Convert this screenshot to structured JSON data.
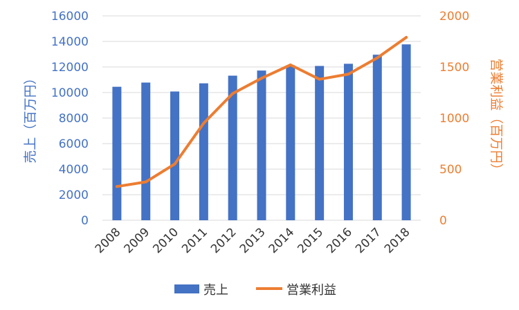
{
  "chart_data": {
    "type": "bar",
    "x": [
      "2008",
      "2009",
      "2010",
      "2011",
      "2012",
      "2013",
      "2014",
      "2015",
      "2016",
      "2017",
      "2018"
    ],
    "series": [
      {
        "name": "売上",
        "type": "bar",
        "axis": "left",
        "color": "#4472C4",
        "values": [
          10450,
          10780,
          10080,
          10720,
          11320,
          11720,
          12130,
          12080,
          12250,
          12960,
          13770
        ]
      },
      {
        "name": "営業利益",
        "type": "line",
        "axis": "right",
        "color": "#ED7D31",
        "values": [
          330,
          375,
          550,
          950,
          1240,
          1390,
          1520,
          1380,
          1430,
          1590,
          1790
        ]
      }
    ],
    "ylabel_left": "売上（百万円）",
    "ylabel_right": "営業利益（百万円）",
    "ylim_left": [
      0,
      16000
    ],
    "ylim_right": [
      0,
      2000
    ],
    "yticks_left": [
      "0",
      "2000",
      "4000",
      "6000",
      "8000",
      "10000",
      "12000",
      "14000",
      "16000"
    ],
    "yticks_right": [
      "0",
      "500",
      "1000",
      "1500",
      "2000"
    ],
    "grid": true,
    "legend_position": "bottom"
  }
}
